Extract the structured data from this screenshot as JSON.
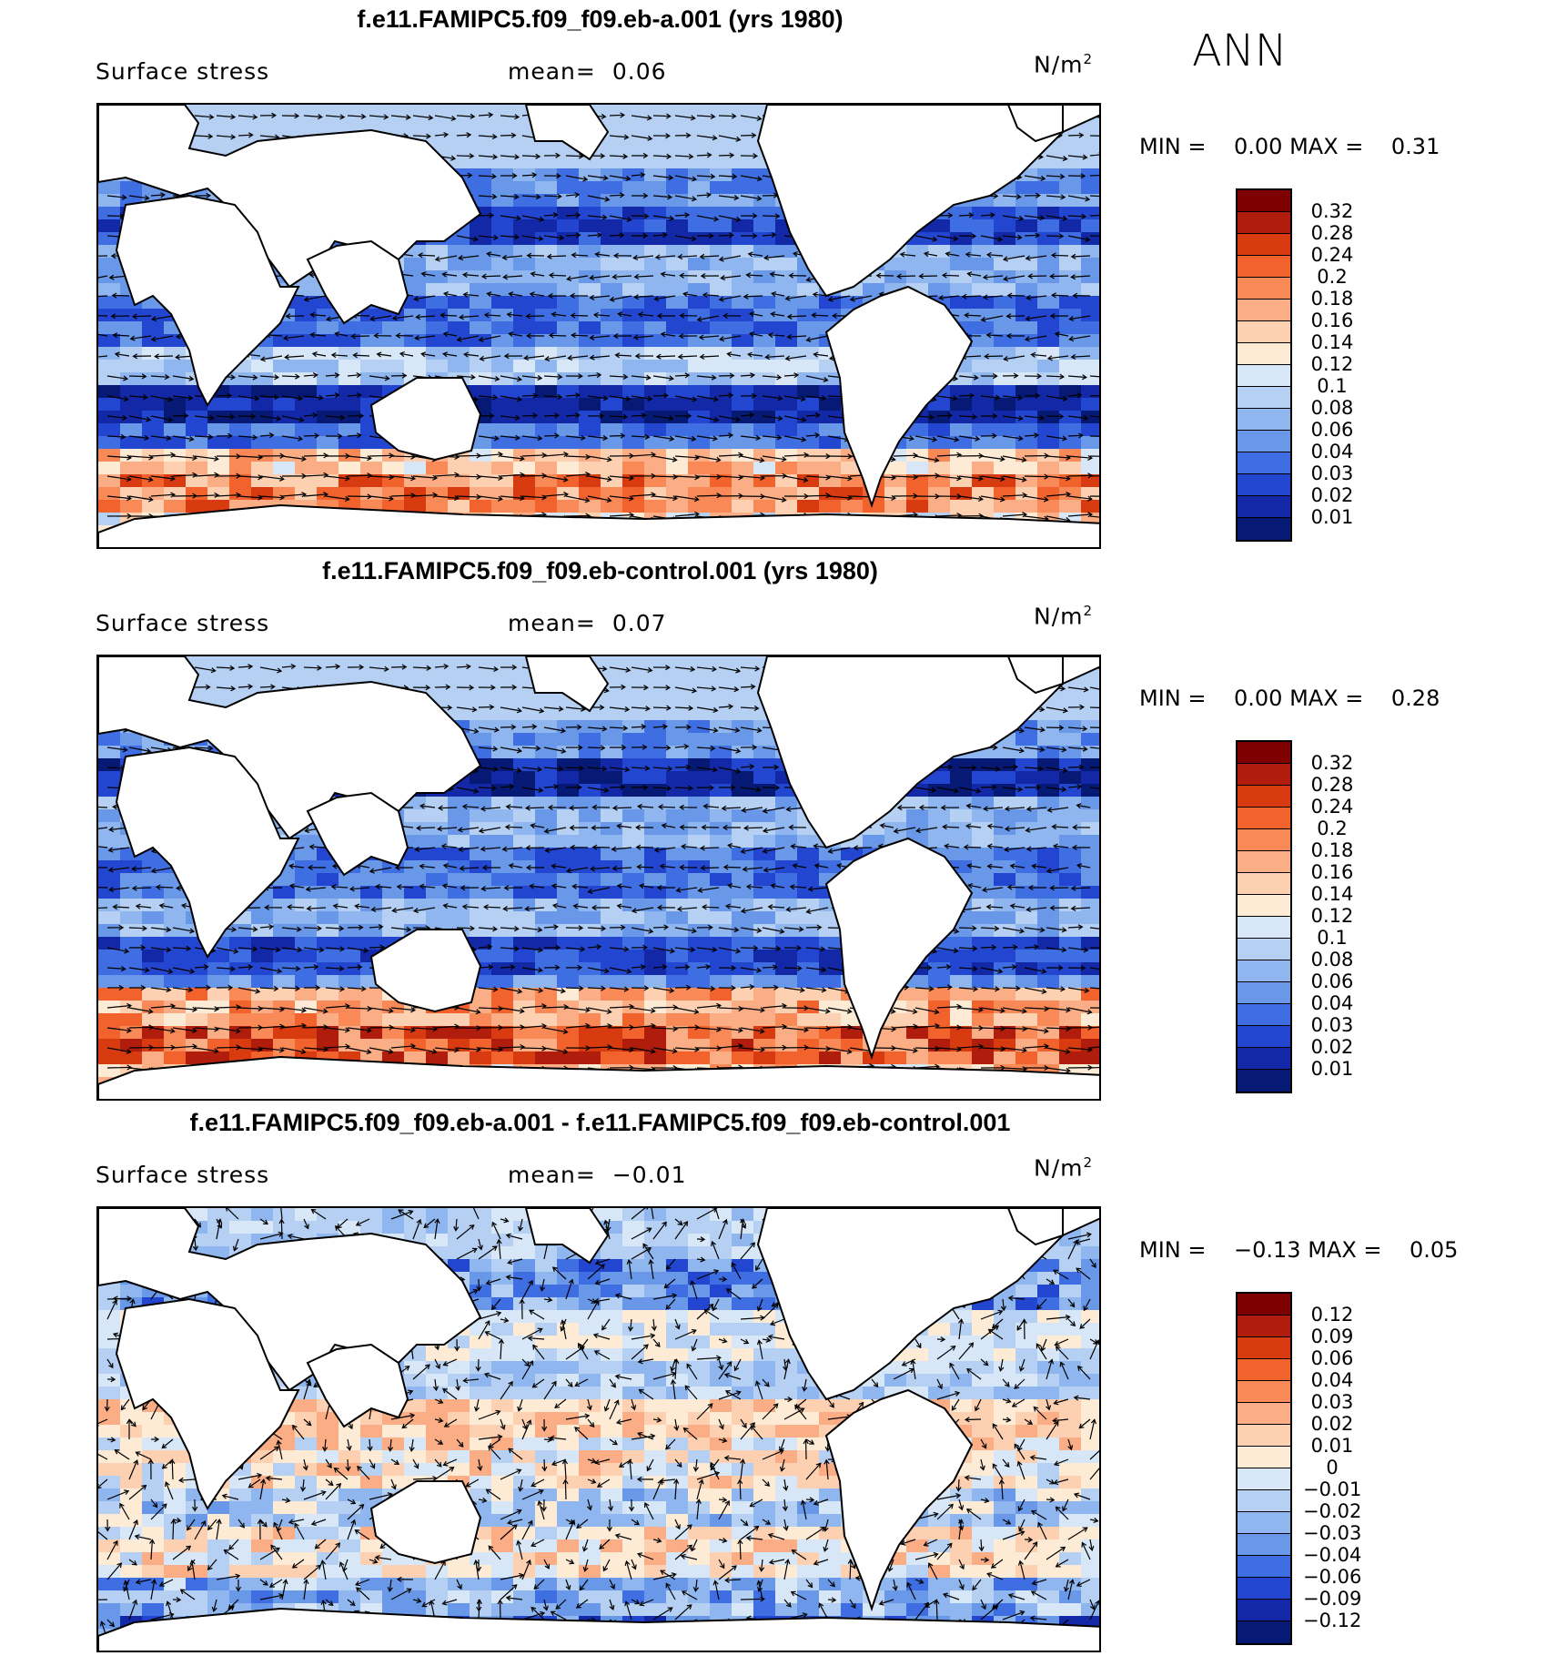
{
  "season": "ANN",
  "land_color": "#ffffff",
  "panels": [
    {
      "title": "f.e11.FAMIPC5.f09_f09.eb-a.001 (yrs 1980)",
      "variable": "Surface stress",
      "mean_label": "mean=",
      "mean_value": "0.06",
      "units": "N/m",
      "units_sup": "2",
      "min_label": "MIN =",
      "min_value": "0.00",
      "max_label": "MAX =",
      "max_value": "0.31",
      "levels": [
        "0.32",
        "0.28",
        "0.24",
        "0.2",
        "0.18",
        "0.16",
        "0.14",
        "0.12",
        "0.1",
        "0.08",
        "0.06",
        "0.04",
        "0.03",
        "0.02",
        "0.01"
      ],
      "colors": [
        "#7f0000",
        "#b01d0d",
        "#d93b10",
        "#f2622c",
        "#f98a58",
        "#fbad85",
        "#fdd0b1",
        "#fdebd6",
        "#d7e7f7",
        "#b5d0f3",
        "#8fb6ee",
        "#6a98e8",
        "#3f6ee3",
        "#2346d1",
        "#1328a6",
        "#061a75"
      ]
    },
    {
      "title": "f.e11.FAMIPC5.f09_f09.eb-control.001 (yrs 1980)",
      "variable": "Surface stress",
      "mean_label": "mean=",
      "mean_value": "0.07",
      "units": "N/m",
      "units_sup": "2",
      "min_label": "MIN =",
      "min_value": "0.00",
      "max_label": "MAX =",
      "max_value": "0.28",
      "levels": [
        "0.32",
        "0.28",
        "0.24",
        "0.2",
        "0.18",
        "0.16",
        "0.14",
        "0.12",
        "0.1",
        "0.08",
        "0.06",
        "0.04",
        "0.03",
        "0.02",
        "0.01"
      ],
      "colors": [
        "#7f0000",
        "#b01d0d",
        "#d93b10",
        "#f2622c",
        "#f98a58",
        "#fbad85",
        "#fdd0b1",
        "#fdebd6",
        "#d7e7f7",
        "#b5d0f3",
        "#8fb6ee",
        "#6a98e8",
        "#3f6ee3",
        "#2346d1",
        "#1328a6",
        "#061a75"
      ]
    },
    {
      "title": "f.e11.FAMIPC5.f09_f09.eb-a.001 - f.e11.FAMIPC5.f09_f09.eb-control.001",
      "variable": "Surface stress",
      "mean_label": "mean=",
      "mean_value": "−0.01",
      "units": "N/m",
      "units_sup": "2",
      "min_label": "MIN =",
      "min_value": "−0.13",
      "max_label": "MAX =",
      "max_value": "0.05",
      "levels": [
        "0.12",
        "0.09",
        "0.06",
        "0.04",
        "0.03",
        "0.02",
        "0.01",
        "0",
        "−0.01",
        "−0.02",
        "−0.03",
        "−0.04",
        "−0.06",
        "−0.09",
        "−0.12"
      ],
      "colors": [
        "#7f0000",
        "#b01d0d",
        "#d93b10",
        "#f2622c",
        "#f98a58",
        "#fbad85",
        "#fdd0b1",
        "#fdebd6",
        "#d7e7f7",
        "#b5d0f3",
        "#8fb6ee",
        "#6a98e8",
        "#3f6ee3",
        "#2346d1",
        "#1328a6",
        "#061a75"
      ]
    }
  ]
}
